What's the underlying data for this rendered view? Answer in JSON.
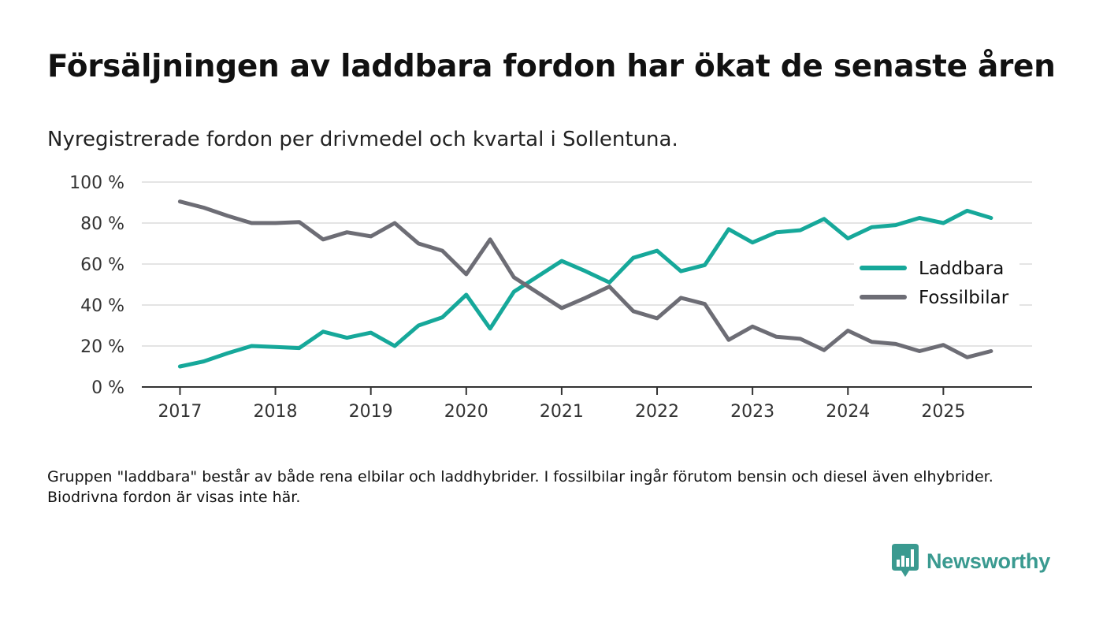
{
  "title": "Försäljningen av laddbara fordon har ökat de senaste åren",
  "subtitle": "Nyregistrerade fordon per drivmedel och kvartal i Sollentuna.",
  "footnote": "Gruppen \"laddbara\" består av både rena elbilar och laddhybrider. I fossilbilar ingår förutom bensin och diesel även elhybrider. Biodrivna fordon är visas inte här.",
  "brand": {
    "name": "Newsworthy",
    "icon": "newsworthy-logo-icon",
    "color": "#3a9a90"
  },
  "chart_data": {
    "type": "line",
    "title": "Försäljningen av laddbara fordon har ökat de senaste åren",
    "xlabel": "",
    "ylabel": "",
    "ylim": [
      0,
      100
    ],
    "yticks": [
      0,
      20,
      40,
      60,
      80,
      100
    ],
    "ytick_labels": [
      "0 %",
      "20 %",
      "40 %",
      "60 %",
      "80 %",
      "100 %"
    ],
    "xticks": [
      2017,
      2018,
      2019,
      2020,
      2021,
      2022,
      2023,
      2024,
      2025
    ],
    "xtick_labels": [
      "2017",
      "2018",
      "2019",
      "2020",
      "2021",
      "2022",
      "2023",
      "2024",
      "2025"
    ],
    "x": [
      2017.0,
      2017.25,
      2017.5,
      2017.75,
      2018.0,
      2018.25,
      2018.5,
      2018.75,
      2019.0,
      2019.25,
      2019.5,
      2019.75,
      2020.0,
      2020.25,
      2020.5,
      2020.75,
      2021.0,
      2021.25,
      2021.5,
      2021.75,
      2022.0,
      2022.25,
      2022.5,
      2022.75,
      2023.0,
      2023.25,
      2023.5,
      2023.75,
      2024.0,
      2024.25,
      2024.5,
      2024.75,
      2025.0,
      2025.25,
      2025.5
    ],
    "grid": true,
    "legend_position": "right",
    "series": [
      {
        "name": "Laddbara",
        "color": "#16a89a",
        "values": [
          10,
          12.5,
          16.5,
          20,
          19.5,
          19,
          27,
          24,
          26.5,
          20,
          30,
          34,
          45,
          28.5,
          46.5,
          54,
          61.5,
          56.5,
          51,
          63,
          66.5,
          56.5,
          59.5,
          77,
          70.5,
          75.5,
          76.5,
          82,
          72.5,
          78,
          79,
          82.5,
          80,
          86,
          82.5
        ]
      },
      {
        "name": "Fossilbilar",
        "color": "#6d6d75",
        "values": [
          90.5,
          87.5,
          83.5,
          80,
          80,
          80.5,
          72,
          75.5,
          73.5,
          80,
          70,
          66.5,
          55,
          72,
          53.5,
          46,
          38.5,
          43.5,
          49,
          37,
          33.5,
          43.5,
          40.5,
          23,
          29.5,
          24.5,
          23.5,
          18,
          27.5,
          22,
          21,
          17.5,
          20.5,
          14.5,
          17.5
        ]
      }
    ]
  }
}
